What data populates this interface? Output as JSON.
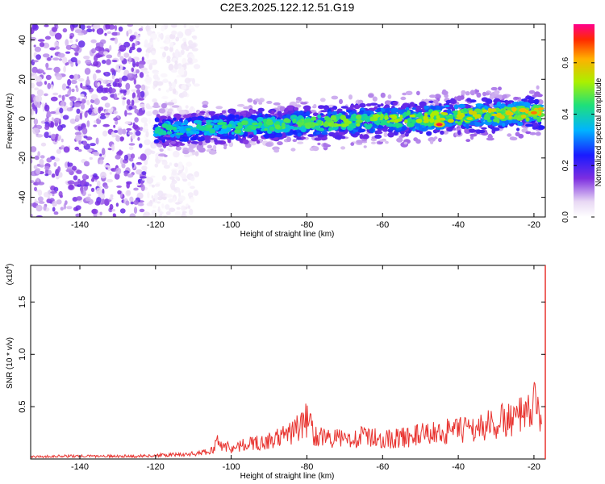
{
  "title": "C2E3.2025.122.12.51.G19",
  "chart_data": [
    {
      "type": "heatmap",
      "xlabel": "Height of straight line (km)",
      "ylabel": "Frequency (Hz)",
      "xlim": [
        -153,
        -17
      ],
      "ylim": [
        -50,
        48
      ],
      "x_ticks": [
        -140,
        -120,
        -100,
        -80,
        -60,
        -40,
        -20
      ],
      "x_tick_labels": [
        "-140",
        "-120",
        "-100",
        "-80",
        "-60",
        "-40",
        "-20"
      ],
      "y_ticks": [
        -40,
        -20,
        0,
        20,
        40
      ],
      "y_tick_labels": [
        "-40",
        "-20",
        "0",
        "20",
        "40"
      ],
      "ridge": {
        "x_start": -120,
        "x_end": -18,
        "center_freq_start": -6,
        "center_freq_end": 3,
        "half_width": 7
      },
      "noise_region": {
        "x_from": -153,
        "x_to": -123
      },
      "peaks": [
        {
          "x": -45,
          "freq": -3,
          "amplitude": 0.72
        },
        {
          "x": -20,
          "freq": 3,
          "amplitude": 0.65
        },
        {
          "x": -37,
          "freq": 0,
          "amplitude": 0.55
        }
      ],
      "colorbar": {
        "label": "Normalized spectral amplitude",
        "range": [
          0,
          0.75
        ],
        "ticks": [
          0.0,
          0.2,
          0.4,
          0.6
        ],
        "tick_labels": [
          "0.0",
          "0.2",
          "0.4",
          "0.6"
        ]
      }
    },
    {
      "type": "line",
      "xlabel": "Height of straight line (km)",
      "ylabel": "SNR (10 * v/v)",
      "y_multiplier": "(x10",
      "y_multiplier_exp": "4",
      "y_multiplier_close": ")",
      "xlim": [
        -153,
        -17
      ],
      "ylim": [
        0,
        1.85
      ],
      "x_ticks": [
        -140,
        -120,
        -100,
        -80,
        -60,
        -40,
        -20
      ],
      "x_tick_labels": [
        "-140",
        "-120",
        "-100",
        "-80",
        "-60",
        "-40",
        "-20"
      ],
      "y_ticks": [
        0.5,
        1.0,
        1.5
      ],
      "y_tick_labels": [
        "0.5",
        "1.0",
        "1.5"
      ],
      "color": "#e8332f",
      "series": [
        {
          "x": [
            -153,
            -145,
            -135,
            -125,
            -115,
            -108,
            -105,
            -104,
            -100,
            -95,
            -90,
            -85,
            -81,
            -80,
            -78,
            -75,
            -70,
            -65,
            -60,
            -55,
            -50,
            -45,
            -40,
            -35,
            -30,
            -25,
            -22,
            -20,
            -18
          ],
          "y": [
            0.03,
            0.04,
            0.04,
            0.04,
            0.06,
            0.08,
            0.12,
            0.25,
            0.15,
            0.22,
            0.25,
            0.35,
            0.48,
            0.57,
            0.35,
            0.3,
            0.28,
            0.32,
            0.28,
            0.3,
            0.34,
            0.38,
            0.4,
            0.44,
            0.5,
            0.6,
            0.58,
            0.76,
            0.6
          ]
        }
      ]
    }
  ]
}
